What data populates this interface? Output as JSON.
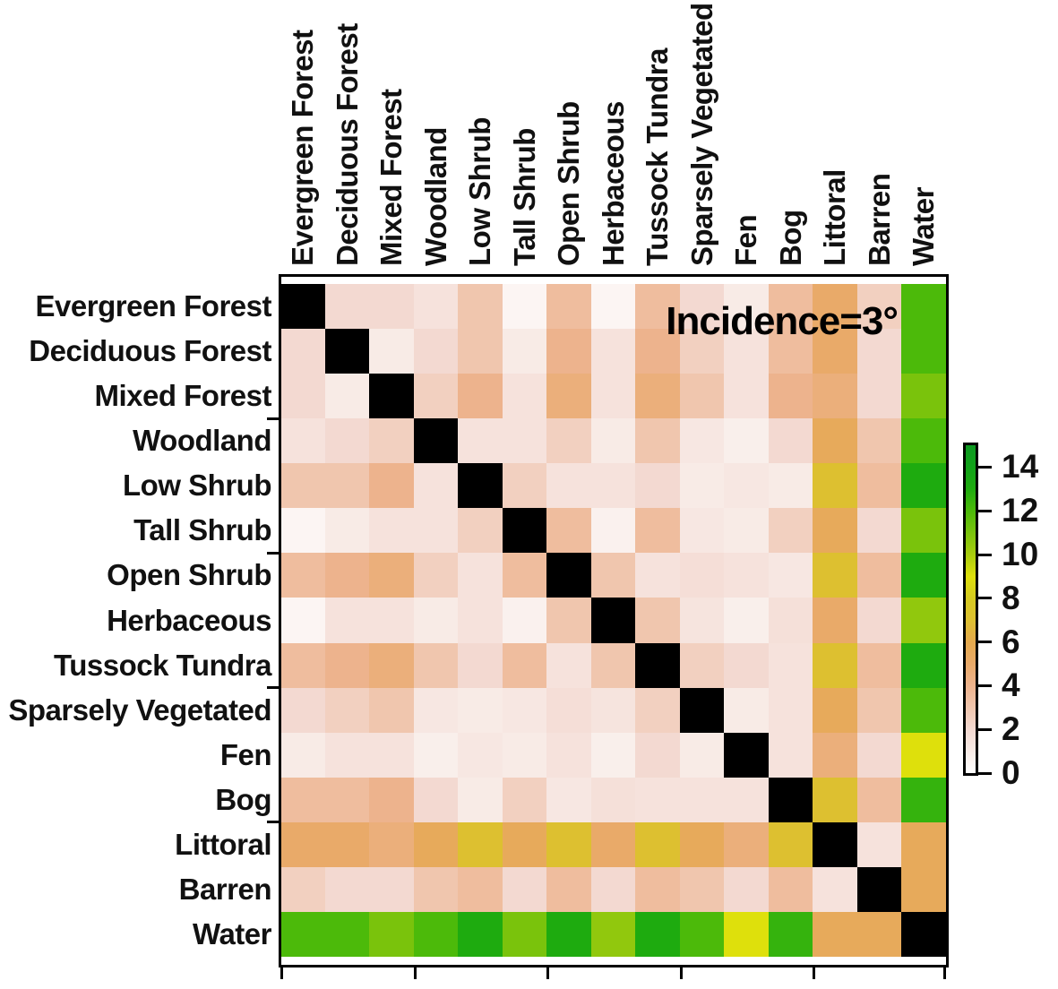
{
  "chart_data": {
    "type": "heatmap",
    "title": "",
    "annotation": "Incidence=3°",
    "categories": [
      "Evergreen Forest",
      "Deciduous Forest",
      "Mixed Forest",
      "Woodland",
      "Low Shrub",
      "Tall Shrub",
      "Open Shrub",
      "Herbaceous",
      "Tussock Tundra",
      "Sparsely Vegetated",
      "Fen",
      "Bog",
      "Littoral",
      "Barren",
      "Water"
    ],
    "matrix": [
      [
        null,
        2,
        2,
        1.5,
        3,
        0.5,
        3.5,
        0.5,
        3.5,
        2,
        1,
        3.5,
        5,
        2.5,
        12
      ],
      [
        2,
        null,
        1,
        2,
        3,
        1,
        4,
        1.5,
        4,
        2.5,
        1.5,
        3.5,
        5,
        2,
        12
      ],
      [
        2,
        1,
        null,
        2.5,
        4,
        1.5,
        4.5,
        1.5,
        4.5,
        3,
        1.5,
        4,
        4.5,
        2,
        11
      ],
      [
        1.5,
        2,
        2.5,
        null,
        1.5,
        1.5,
        2.5,
        1,
        3,
        1.2,
        0.8,
        2,
        5.5,
        3,
        12
      ],
      [
        3,
        3,
        4,
        1.5,
        null,
        2.5,
        1.5,
        1.5,
        2,
        1,
        1.2,
        1,
        7,
        3.5,
        13
      ],
      [
        0.5,
        1,
        1.5,
        1.5,
        2.5,
        null,
        3.5,
        0.7,
        3.5,
        1.2,
        1,
        2.5,
        5.5,
        2,
        11
      ],
      [
        3.5,
        4,
        4.5,
        2.5,
        1.5,
        3.5,
        null,
        3,
        1.5,
        1.7,
        1.5,
        1.2,
        7,
        3.5,
        13
      ],
      [
        0.5,
        1.5,
        1.5,
        1,
        1.5,
        0.7,
        3,
        null,
        3,
        1.4,
        0.8,
        1.6,
        5,
        2,
        10.5
      ],
      [
        3.5,
        4,
        4.5,
        3,
        2,
        3.5,
        1.5,
        3,
        null,
        2.5,
        2,
        1.5,
        7,
        3.5,
        13
      ],
      [
        2,
        2.5,
        3,
        1.2,
        1,
        1.2,
        1.7,
        1.4,
        2.5,
        null,
        1,
        1.5,
        5.5,
        3,
        12
      ],
      [
        1,
        1.5,
        1.5,
        0.8,
        1.2,
        1,
        1.5,
        0.8,
        2,
        1,
        null,
        1.5,
        4.5,
        2,
        9
      ],
      [
        3.5,
        3.5,
        4,
        2,
        1,
        2.5,
        1.2,
        1.6,
        1.5,
        1.5,
        1.5,
        null,
        7,
        3.5,
        12.5
      ],
      [
        5,
        5,
        4.5,
        5.5,
        7,
        5.5,
        7,
        5,
        7,
        5.5,
        4.5,
        7,
        null,
        1.5,
        5.5
      ],
      [
        2.5,
        2,
        2,
        3,
        3.5,
        2,
        3.5,
        2,
        3.5,
        3,
        2,
        3.5,
        1.5,
        null,
        5.5
      ],
      [
        12,
        12,
        11,
        12,
        13,
        11,
        13,
        10.5,
        13,
        12,
        9,
        12.5,
        5.5,
        5.5,
        null
      ]
    ],
    "colorbar": {
      "min": 0,
      "max": 15,
      "tick_values": [
        0,
        2,
        4,
        6,
        8,
        10,
        12,
        14
      ],
      "tick_labels": [
        "0",
        "2",
        "4",
        "6",
        "8",
        "10",
        "12",
        "14"
      ],
      "position": "right"
    },
    "axis": {
      "x_tick_every": 3,
      "y_tick_every": 3,
      "grid": false,
      "frame": true
    }
  },
  "colors": {
    "diagonal": "#000000",
    "frame": "#000000",
    "background": "#ffffff",
    "label_text": "#111111",
    "colormap_stops": [
      [
        0,
        "#ffffff"
      ],
      [
        1,
        "#f8ebe6"
      ],
      [
        2,
        "#f3d9d1"
      ],
      [
        3,
        "#f0c6ae"
      ],
      [
        4,
        "#edb38d"
      ],
      [
        5,
        "#e9aa69"
      ],
      [
        6,
        "#e4a94d"
      ],
      [
        7,
        "#ddc030"
      ],
      [
        8,
        "#d5ca20"
      ],
      [
        9,
        "#dee00c"
      ],
      [
        10,
        "#a8cc0e"
      ],
      [
        11,
        "#7ac30c"
      ],
      [
        12,
        "#4cba0a"
      ],
      [
        13,
        "#1eab0f"
      ],
      [
        14,
        "#11a219"
      ],
      [
        15,
        "#0d9821"
      ]
    ]
  }
}
